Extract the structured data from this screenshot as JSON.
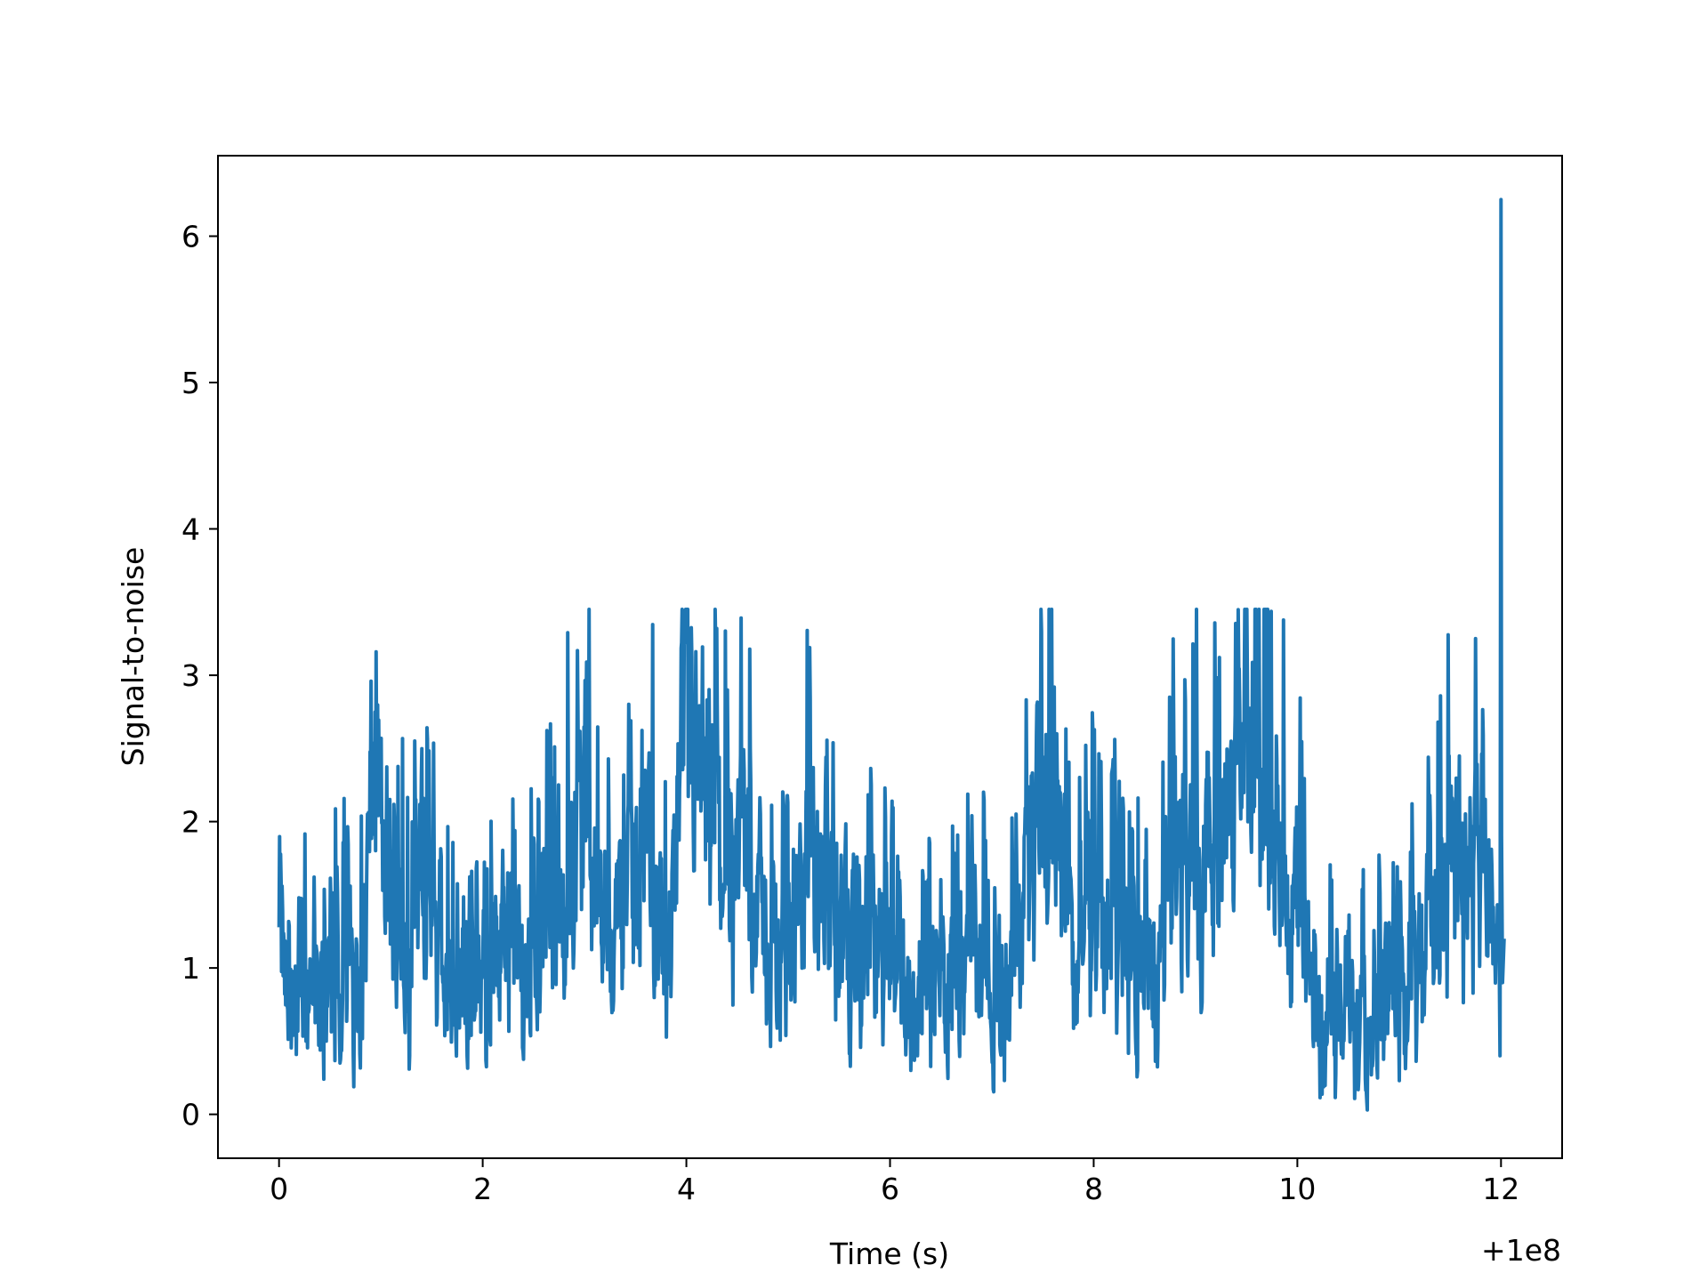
{
  "chart_data": {
    "type": "line",
    "title": "",
    "xlabel": "Time (s)",
    "ylabel": "Signal-to-noise",
    "x_offset_label": "+1e8",
    "xlim": [
      -0.6,
      12.6
    ],
    "ylim": [
      -0.3,
      6.55
    ],
    "xticks": [
      0,
      2,
      4,
      6,
      8,
      10,
      12
    ],
    "yticks": [
      0,
      1,
      2,
      3,
      4,
      5,
      6
    ],
    "grid": false,
    "legend": "none",
    "series_color": "#1f77b4",
    "anchor_points": [
      [
        0.0,
        1.4
      ],
      [
        0.1,
        0.5
      ],
      [
        0.2,
        1.0
      ],
      [
        0.4,
        0.7
      ],
      [
        0.6,
        1.0
      ],
      [
        0.8,
        0.9
      ],
      [
        0.95,
        2.6
      ],
      [
        1.0,
        1.8
      ],
      [
        1.3,
        1.0
      ],
      [
        1.4,
        1.9
      ],
      [
        1.6,
        0.8
      ],
      [
        1.8,
        1.0
      ],
      [
        2.0,
        0.7
      ],
      [
        2.2,
        1.2
      ],
      [
        2.4,
        0.9
      ],
      [
        2.6,
        1.2
      ],
      [
        2.8,
        1.5
      ],
      [
        3.0,
        2.2
      ],
      [
        3.2,
        1.2
      ],
      [
        3.4,
        1.4
      ],
      [
        3.6,
        2.0
      ],
      [
        3.8,
        1.0
      ],
      [
        4.0,
        2.6
      ],
      [
        4.2,
        2.0
      ],
      [
        4.4,
        1.7
      ],
      [
        4.6,
        1.8
      ],
      [
        4.8,
        1.1
      ],
      [
        5.0,
        1.0
      ],
      [
        5.2,
        1.7
      ],
      [
        5.4,
        1.4
      ],
      [
        5.6,
        1.2
      ],
      [
        5.8,
        1.1
      ],
      [
        6.0,
        1.1
      ],
      [
        6.2,
        0.8
      ],
      [
        6.4,
        0.9
      ],
      [
        6.6,
        0.9
      ],
      [
        6.8,
        1.3
      ],
      [
        7.0,
        0.8
      ],
      [
        7.2,
        0.9
      ],
      [
        7.4,
        1.9
      ],
      [
        7.6,
        2.4
      ],
      [
        7.8,
        1.0
      ],
      [
        8.0,
        1.4
      ],
      [
        8.2,
        1.2
      ],
      [
        8.4,
        1.0
      ],
      [
        8.6,
        0.9
      ],
      [
        8.8,
        1.7
      ],
      [
        9.0,
        1.9
      ],
      [
        9.2,
        1.7
      ],
      [
        9.4,
        2.0
      ],
      [
        9.6,
        2.6
      ],
      [
        9.8,
        1.8
      ],
      [
        10.0,
        1.5
      ],
      [
        10.2,
        0.7
      ],
      [
        10.4,
        0.6
      ],
      [
        10.6,
        0.7
      ],
      [
        10.8,
        0.9
      ],
      [
        11.0,
        0.8
      ],
      [
        11.2,
        1.1
      ],
      [
        11.4,
        1.5
      ],
      [
        11.6,
        1.8
      ],
      [
        11.8,
        1.6
      ],
      [
        11.98,
        1.2
      ],
      [
        12.0,
        6.25
      ],
      [
        12.03,
        1.2
      ]
    ]
  }
}
